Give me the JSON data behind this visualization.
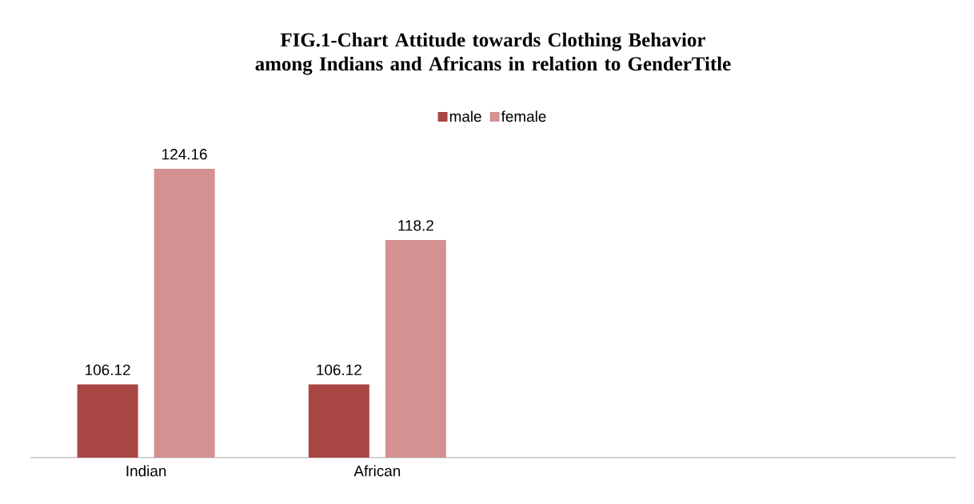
{
  "chart_data": {
    "type": "bar",
    "title": "FIG.1-Chart Attitude towards Clothing Behavior among Indians and Africans in relation to GenderTitle",
    "categories": [
      "Indian",
      "African",
      null,
      null
    ],
    "series": [
      {
        "name": "male",
        "color": "#a94744",
        "values": [
          106.12,
          106.12,
          null,
          null
        ]
      },
      {
        "name": "female",
        "color": "#d39291",
        "values": [
          124.16,
          118.2,
          null,
          null
        ]
      }
    ],
    "ylim": [
      100,
      124.16
    ],
    "data_labels": true,
    "legend": "top"
  }
}
